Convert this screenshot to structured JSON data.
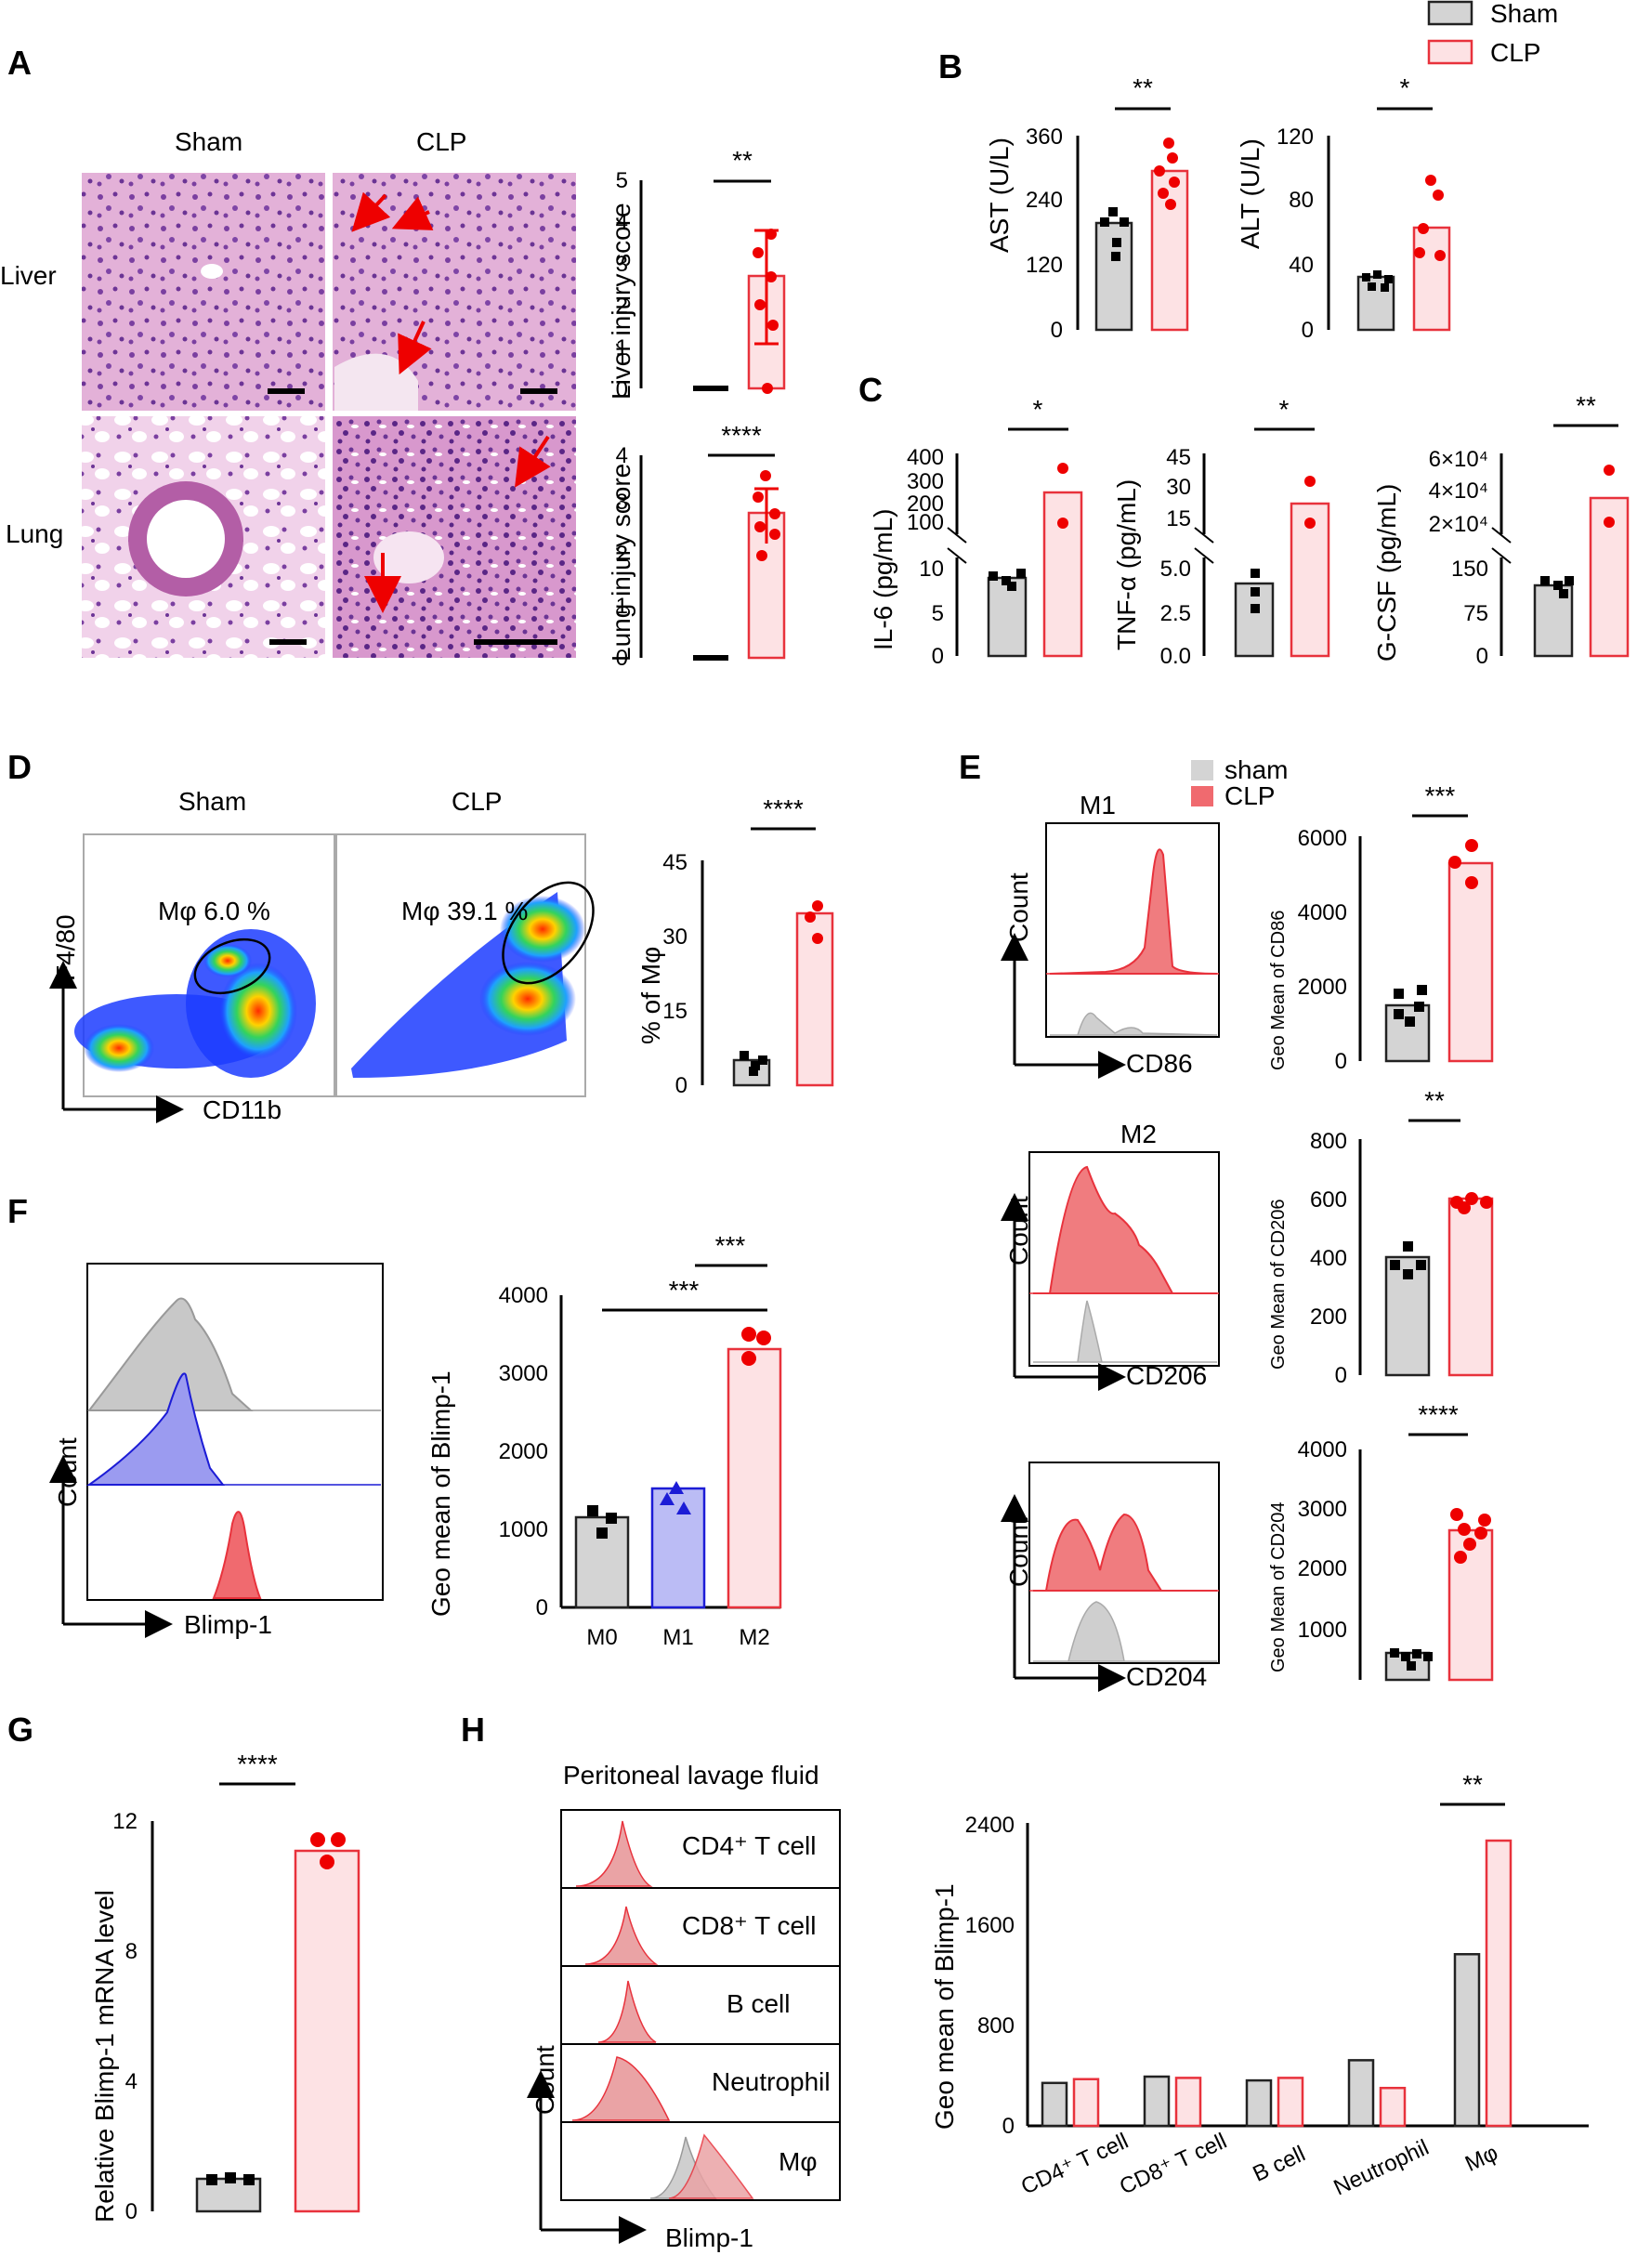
{
  "legend_top": {
    "sham": "Sham",
    "clp": "CLP"
  },
  "panelA": {
    "label": "A",
    "col_sham": "Sham",
    "col_clp": "CLP",
    "row_liver": "Liver",
    "row_lung": "Lung"
  },
  "liver_chart": {
    "ylabel": "Liver injury score",
    "ticks": [
      "0",
      "1",
      "2",
      "3",
      "4",
      "5"
    ],
    "sig": "**"
  },
  "lung_chart": {
    "ylabel": "Lung injury score",
    "ticks": [
      "0",
      "1",
      "2",
      "3",
      "4"
    ],
    "sig": "****"
  },
  "panelB": {
    "label": "B",
    "ast": {
      "ylabel": "AST (U/L)",
      "ticks": [
        "0",
        "120",
        "240",
        "360"
      ],
      "sig": "**"
    },
    "alt": {
      "ylabel": "ALT (U/L)",
      "ticks": [
        "0",
        "40",
        "80",
        "120"
      ],
      "sig": "*"
    }
  },
  "panelC": {
    "label": "C",
    "il6": {
      "ylabel": "IL-6  (pg/mL)",
      "ticks_low": [
        "0",
        "5",
        "10"
      ],
      "ticks_high": [
        "100",
        "200",
        "300",
        "400"
      ],
      "sig": "*"
    },
    "tnf": {
      "ylabel": "TNF-α  (pg/mL)",
      "ticks_low": [
        "0.0",
        "2.5",
        "5.0"
      ],
      "ticks_high": [
        "15",
        "30",
        "45"
      ],
      "sig": "*"
    },
    "gcsf": {
      "ylabel": "G-CSF  (pg/mL)",
      "ticks_low": [
        "0",
        "75",
        "150"
      ],
      "ticks_high": [
        "2×10⁴",
        "4×10⁴",
        "6×10⁴"
      ],
      "sig": "**"
    }
  },
  "panelD": {
    "label": "D",
    "sham": "Sham",
    "clp": "CLP",
    "gate_sham": "Mφ 6.0 %",
    "gate_clp": "Mφ 39.1 %",
    "yaxis": "F4/80",
    "xaxis": "CD11b",
    "chart": {
      "ylabel": "% of Mφ",
      "ticks": [
        "0",
        "15",
        "30",
        "45"
      ],
      "sig": "****"
    }
  },
  "panelE": {
    "label": "E",
    "legend_sham": "sham",
    "legend_clp": "CLP",
    "m1": {
      "title": "M1",
      "x": "CD86",
      "y": "Count",
      "ylabel": "Geo Mean of CD86",
      "ticks": [
        "0",
        "2000",
        "4000",
        "6000"
      ],
      "sig": "***"
    },
    "m2": {
      "title": "M2",
      "x": "CD206",
      "y": "Count",
      "ylabel": "Geo Mean of CD206",
      "ticks": [
        "0",
        "200",
        "400",
        "600",
        "800"
      ],
      "sig": "**"
    },
    "m3": {
      "x": "CD204",
      "y": "Count",
      "ylabel": "Geo Mean of CD204",
      "ticks": [
        "1000",
        "2000",
        "3000",
        "4000"
      ],
      "sig": "****"
    }
  },
  "panelF": {
    "label": "F",
    "x": "Blimp-1",
    "y": "Count",
    "ylabel": "Geo mean of Blimp-1",
    "ticks": [
      "0",
      "1000",
      "2000",
      "3000",
      "4000"
    ],
    "cats": [
      "M0",
      "M1",
      "M2"
    ],
    "sig1": "***",
    "sig2": "***"
  },
  "panelG": {
    "label": "G",
    "ylabel": "Relative Blimp-1 mRNA level",
    "ticks": [
      "0",
      "4",
      "8",
      "12"
    ],
    "sig": "****"
  },
  "panelH": {
    "label": "H",
    "title": "Peritoneal lavage fluid",
    "rows": [
      "CD4⁺ T cell",
      "CD8⁺ T cell",
      "B cell",
      "Neutrophil",
      "Mφ"
    ],
    "x": "Blimp-1",
    "y": "Count",
    "ylabel": "Geo mean of Blimp-1",
    "ticks": [
      "0",
      "800",
      "1600",
      "2400"
    ],
    "cats": [
      "CD4⁺ T cell",
      "CD8⁺ T cell",
      "B cell",
      "Neutrophil",
      "Mφ"
    ],
    "sig": "**"
  },
  "chart_data": [
    {
      "type": "bar",
      "title": "Liver injury score",
      "categories": [
        "Sham",
        "CLP"
      ],
      "values": [
        0,
        2.7
      ],
      "errors": [
        0,
        1.5
      ],
      "ylim": [
        0,
        5
      ],
      "points": [
        [
          0,
          0,
          0,
          0,
          0,
          0
        ],
        [
          4.0,
          3.5,
          2.7,
          2.0,
          1.5,
          0
        ]
      ]
    },
    {
      "type": "bar",
      "title": "Lung injury score",
      "categories": [
        "Sham",
        "CLP"
      ],
      "values": [
        0,
        2.8
      ],
      "errors": [
        0,
        0.6
      ],
      "ylim": [
        0,
        4
      ],
      "points": [
        [
          0,
          0,
          0,
          0,
          0,
          0
        ],
        [
          3.7,
          3.1,
          2.8,
          2.6,
          2.4,
          2.0
        ]
      ]
    },
    {
      "type": "bar",
      "title": "AST (U/L)",
      "categories": [
        "Sham",
        "CLP"
      ],
      "values": [
        198,
        300
      ],
      "errors": [
        28,
        50
      ],
      "ylim": [
        0,
        360
      ],
      "points": [
        [
          225,
          200,
          195,
          170,
          150
        ],
        [
          340,
          320,
          300,
          280,
          250,
          230
        ]
      ]
    },
    {
      "type": "bar",
      "title": "ALT (U/L)",
      "categories": [
        "Sham",
        "CLP"
      ],
      "values": [
        33,
        65
      ],
      "errors": [
        5,
        22
      ],
      "ylim": [
        0,
        120
      ],
      "points": [
        [
          38,
          35,
          33,
          30,
          28
        ],
        [
          95,
          80,
          62,
          50,
          48
        ]
      ]
    },
    {
      "type": "bar",
      "title": "IL-6 (pg/mL)",
      "categories": [
        "Sham",
        "CLP"
      ],
      "values": [
        8,
        250
      ],
      "ylim": [
        0,
        400
      ]
    },
    {
      "type": "bar",
      "title": "TNF-α (pg/mL)",
      "categories": [
        "Sham",
        "CLP"
      ],
      "values": [
        4.5,
        22
      ],
      "ylim": [
        0,
        45
      ]
    },
    {
      "type": "bar",
      "title": "G-CSF (pg/mL)",
      "categories": [
        "Sham",
        "CLP"
      ],
      "values": [
        120,
        38000
      ],
      "ylim": [
        0,
        60000
      ]
    },
    {
      "type": "bar",
      "title": "% of Mφ",
      "categories": [
        "Sham",
        "CLP"
      ],
      "values": [
        5,
        35
      ],
      "errors": [
        1.5,
        3
      ],
      "ylim": [
        0,
        45
      ]
    },
    {
      "type": "bar",
      "title": "Geo Mean of CD86",
      "categories": [
        "sham",
        "CLP"
      ],
      "values": [
        1500,
        5300
      ],
      "ylim": [
        0,
        6000
      ]
    },
    {
      "type": "bar",
      "title": "Geo Mean of CD206",
      "categories": [
        "sham",
        "CLP"
      ],
      "values": [
        400,
        600
      ],
      "ylim": [
        0,
        800
      ]
    },
    {
      "type": "bar",
      "title": "Geo Mean of CD204",
      "categories": [
        "sham",
        "CLP"
      ],
      "values": [
        450,
        2600
      ],
      "ylim": [
        0,
        4000
      ]
    },
    {
      "type": "bar",
      "title": "Geo mean of Blimp-1",
      "categories": [
        "M0",
        "M1",
        "M2"
      ],
      "values": [
        1150,
        1530,
        3300
      ],
      "ylim": [
        0,
        4000
      ]
    },
    {
      "type": "bar",
      "title": "Relative Blimp-1 mRNA level",
      "categories": [
        "Sham",
        "CLP"
      ],
      "values": [
        1,
        11.1
      ],
      "ylim": [
        0,
        12
      ]
    },
    {
      "type": "bar",
      "title": "Geo mean of Blimp-1 (peritoneal)",
      "categories": [
        "CD4⁺ T cell",
        "CD8⁺ T cell",
        "B cell",
        "Neutrophil",
        "Mφ"
      ],
      "series": [
        {
          "name": "Sham",
          "values": [
            340,
            390,
            360,
            520,
            1360
          ]
        },
        {
          "name": "CLP",
          "values": [
            370,
            380,
            380,
            300,
            2260
          ]
        }
      ],
      "ylim": [
        0,
        2400
      ]
    }
  ]
}
